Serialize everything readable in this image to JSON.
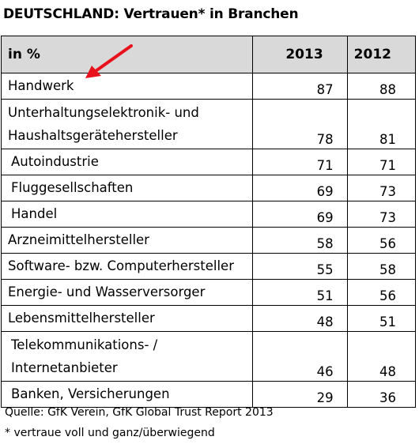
{
  "title": "DEUTSCHLAND: Vertrauen* in Branchen",
  "table": {
    "headers": [
      "in  %",
      "2013",
      "2012"
    ],
    "rows": [
      {
        "label": "Handwerk",
        "y2013": "87",
        "y2012": "88",
        "indent": false,
        "tall": false
      },
      {
        "label": "Unterhaltungselektronik- und\nHaushaltsgerätehersteller",
        "y2013": "78",
        "y2012": "81",
        "indent": false,
        "tall": true
      },
      {
        "label": "Autoindustrie",
        "y2013": "71",
        "y2012": "71",
        "indent": true,
        "tall": false
      },
      {
        "label": "Fluggesellschaften",
        "y2013": "69",
        "y2012": "73",
        "indent": true,
        "tall": false
      },
      {
        "label": "Handel",
        "y2013": "69",
        "y2012": "73",
        "indent": true,
        "tall": false
      },
      {
        "label": "Arzneimittelhersteller",
        "y2013": "58",
        "y2012": "56",
        "indent": false,
        "tall": false
      },
      {
        "label": "Software- bzw. Computerhersteller",
        "y2013": "55",
        "y2012": "58",
        "indent": false,
        "tall": false
      },
      {
        "label": "Energie- und Wasserversorger",
        "y2013": "51",
        "y2012": "56",
        "indent": false,
        "tall": false
      },
      {
        "label": "Lebensmittelhersteller",
        "y2013": "48",
        "y2012": "51",
        "indent": false,
        "tall": false
      },
      {
        "label": "Telekommunikations- /\nInternetanbieter",
        "y2013": "46",
        "y2012": "48",
        "indent": true,
        "tall": true
      },
      {
        "label": "Banken, Versicherungen",
        "y2013": "29",
        "y2012": "36",
        "indent": true,
        "tall": false
      }
    ]
  },
  "source": "Quelle: GfK Verein, GfK Global Trust Report 2013",
  "footnote": "* vertraue voll und ganz/überwiegend",
  "colors": {
    "header_bg": "#d9d9d9",
    "arrow": "#e8121c",
    "border": "#000000"
  },
  "icons": {
    "arrow": "red-arrow-icon"
  }
}
